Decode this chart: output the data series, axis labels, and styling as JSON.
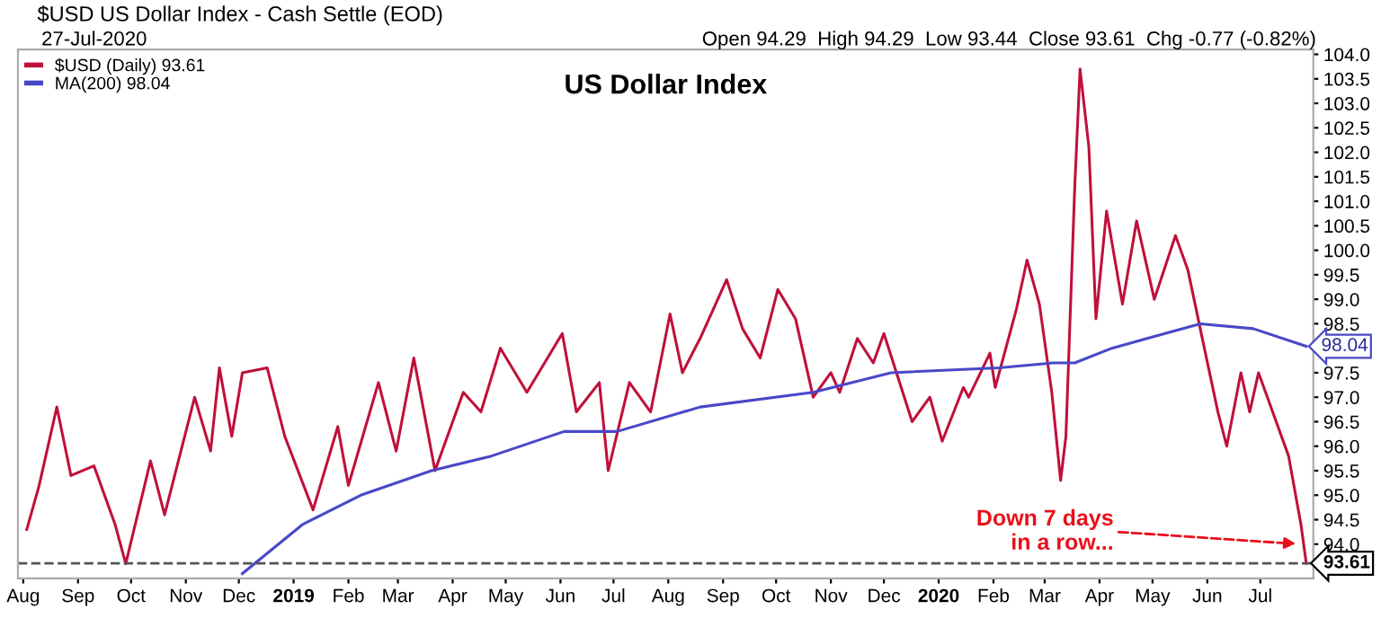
{
  "chart_data": {
    "type": "line",
    "title": "US Dollar Index",
    "annotations": [
      "$USD US Dollar Index - Cash Settle (EOD)",
      "27-Jul-2020",
      "Open 94.29  High 94.29  Low 93.44  Close 93.61  Chg -0.77 (-0.82%)",
      {
        "text": "Down 7 days\nin a row...",
        "x": "2020-07-24",
        "y": 94.0
      },
      {
        "text": "98.04",
        "x": "2020-07-27",
        "y": 98.04
      }
    ],
    "series": [
      {
        "name": "$USD (Daily) 93.61",
        "color": "#c0103a",
        "x": [
          "2018-08-03",
          "2018-08-10",
          "2018-08-20",
          "2018-08-28",
          "2018-09-10",
          "2018-09-22",
          "2018-09-28",
          "2018-10-12",
          "2018-10-20",
          "2018-11-06",
          "2018-11-15",
          "2018-11-20",
          "2018-11-27",
          "2018-12-03",
          "2018-12-17",
          "2018-12-27",
          "2019-01-12",
          "2019-01-26",
          "2019-02-01",
          "2019-02-18",
          "2019-02-28",
          "2019-03-10",
          "2019-03-22",
          "2019-04-07",
          "2019-04-17",
          "2019-04-28",
          "2019-05-13",
          "2019-06-02",
          "2019-06-10",
          "2019-06-23",
          "2019-06-28",
          "2019-07-10",
          "2019-07-22",
          "2019-08-02",
          "2019-08-09",
          "2019-08-19",
          "2019-09-03",
          "2019-09-12",
          "2019-09-22",
          "2019-10-02",
          "2019-10-12",
          "2019-10-22",
          "2019-11-01",
          "2019-11-06",
          "2019-11-16",
          "2019-11-25",
          "2019-12-01",
          "2019-12-17",
          "2019-12-27",
          "2020-01-03",
          "2020-01-15",
          "2020-01-18",
          "2020-01-30",
          "2020-02-02",
          "2020-02-14",
          "2020-02-20",
          "2020-02-27",
          "2020-03-05",
          "2020-03-10",
          "2020-03-13",
          "2020-03-18",
          "2020-03-21",
          "2020-03-26",
          "2020-03-30",
          "2020-04-05",
          "2020-04-14",
          "2020-04-22",
          "2020-05-02",
          "2020-05-14",
          "2020-05-21",
          "2020-05-28",
          "2020-06-07",
          "2020-06-12",
          "2020-06-20",
          "2020-06-25",
          "2020-06-30",
          "2020-07-10",
          "2020-07-17",
          "2020-07-24",
          "2020-07-27"
        ],
        "values": [
          94.3,
          95.2,
          96.8,
          95.4,
          95.6,
          94.4,
          93.6,
          95.7,
          94.6,
          97.0,
          95.9,
          97.6,
          96.2,
          97.5,
          97.6,
          96.2,
          94.7,
          96.4,
          95.2,
          97.3,
          95.9,
          97.8,
          95.5,
          97.1,
          96.7,
          98.0,
          97.1,
          98.3,
          96.7,
          97.3,
          95.5,
          97.3,
          96.7,
          98.7,
          97.5,
          98.2,
          99.4,
          98.4,
          97.8,
          99.2,
          98.6,
          97.0,
          97.5,
          97.1,
          98.2,
          97.7,
          98.3,
          96.5,
          97.0,
          96.1,
          97.2,
          97.0,
          97.9,
          97.2,
          98.8,
          99.8,
          98.9,
          97.1,
          95.3,
          96.2,
          101.3,
          103.7,
          102.1,
          98.6,
          100.8,
          98.9,
          100.6,
          99.0,
          100.3,
          99.6,
          98.4,
          96.7,
          96.0,
          97.5,
          96.7,
          97.5,
          96.5,
          95.8,
          94.4,
          93.61
        ]
      },
      {
        "name": "MA(200) 98.04",
        "color": "#4848c8",
        "x": [
          "2018-12-03",
          "2019-01-06",
          "2019-02-08",
          "2019-03-20",
          "2019-04-23",
          "2019-06-03",
          "2019-07-03",
          "2019-08-19",
          "2019-10-22",
          "2019-12-05",
          "2020-02-04",
          "2020-03-06",
          "2020-03-18",
          "2020-04-08",
          "2020-05-28",
          "2020-06-27",
          "2020-07-27"
        ],
        "values": [
          93.4,
          94.4,
          95.0,
          95.5,
          95.8,
          96.3,
          96.3,
          96.8,
          97.1,
          97.5,
          97.6,
          97.7,
          97.7,
          98.0,
          98.5,
          98.4,
          98.04
        ]
      }
    ],
    "ref_lines": [
      {
        "axis": "y",
        "value": 93.61,
        "label": "93.61",
        "color": "#555555",
        "line_style": "dashed"
      }
    ],
    "xlim": [
      "2018-07-29",
      "2020-07-31"
    ],
    "xticks": [
      {
        "value": "2018-08-01",
        "label": "Aug"
      },
      {
        "value": "2018-09-01",
        "label": "Sep"
      },
      {
        "value": "2018-10-01",
        "label": "Oct"
      },
      {
        "value": "2018-11-01",
        "label": "Nov"
      },
      {
        "value": "2018-12-01",
        "label": "Dec"
      },
      {
        "value": "2019-01-01",
        "label": "2019"
      },
      {
        "value": "2019-02-01",
        "label": "Feb"
      },
      {
        "value": "2019-03-01",
        "label": "Mar"
      },
      {
        "value": "2019-04-01",
        "label": "Apr"
      },
      {
        "value": "2019-05-01",
        "label": "May"
      },
      {
        "value": "2019-06-01",
        "label": "Jun"
      },
      {
        "value": "2019-07-01",
        "label": "Jul"
      },
      {
        "value": "2019-08-01",
        "label": "Aug"
      },
      {
        "value": "2019-09-01",
        "label": "Sep"
      },
      {
        "value": "2019-10-01",
        "label": "Oct"
      },
      {
        "value": "2019-11-01",
        "label": "Nov"
      },
      {
        "value": "2019-12-01",
        "label": "Dec"
      },
      {
        "value": "2020-01-01",
        "label": "2020"
      },
      {
        "value": "2020-02-01",
        "label": "Feb"
      },
      {
        "value": "2020-03-01",
        "label": "Mar"
      },
      {
        "value": "2020-04-01",
        "label": "Apr"
      },
      {
        "value": "2020-05-01",
        "label": "May"
      },
      {
        "value": "2020-06-01",
        "label": "Jun"
      },
      {
        "value": "2020-07-01",
        "label": "Jul"
      }
    ],
    "ylim": [
      93.3,
      104.1
    ],
    "yticks": [
      {
        "value": 94,
        "label": "94.0"
      },
      94.5,
      {
        "value": 95,
        "label": "95.0"
      },
      95.5,
      {
        "value": 96,
        "label": "96.0"
      },
      96.5,
      {
        "value": 97,
        "label": "97.0"
      },
      97.5,
      {
        "value": 98,
        "label": null
      },
      98.5,
      {
        "value": 99,
        "label": "99.0"
      },
      99.5,
      {
        "value": 100,
        "label": "100.0"
      },
      100.5,
      {
        "value": 101,
        "label": "101.0"
      },
      101.5,
      {
        "value": 102,
        "label": "102.0"
      },
      102.5,
      {
        "value": 103,
        "label": "103.0"
      },
      103.5,
      {
        "value": 104,
        "label": "104.0"
      }
    ],
    "grid": false,
    "legend": "top left",
    "marker": "none",
    "line_style": "solid"
  }
}
